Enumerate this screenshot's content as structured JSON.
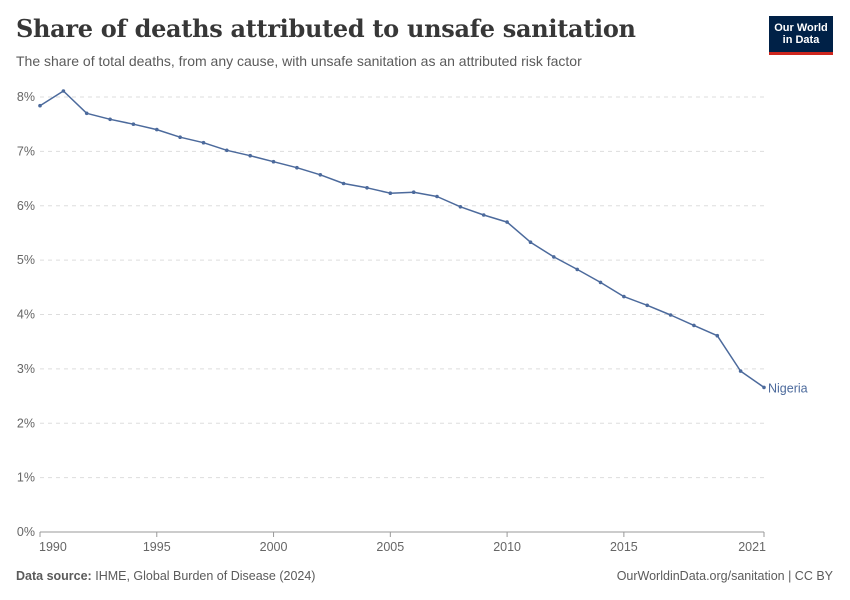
{
  "header": {
    "title": "Share of deaths attributed to unsafe sanitation",
    "subtitle": "The share of total deaths, from any cause, with unsafe sanitation as an attributed risk factor"
  },
  "logo": {
    "line1": "Our World",
    "line2": "in Data"
  },
  "footer": {
    "source_label": "Data source:",
    "source_text": "IHME, Global Burden of Disease (2024)",
    "license": "OurWorldinData.org/sanitation | CC BY"
  },
  "colors": {
    "series": "#4c6a9c",
    "grid": "#dddddd",
    "axis_text": "#666666",
    "logo_bg": "#002147",
    "logo_accent": "#ce261e"
  },
  "chart_data": {
    "type": "line",
    "title": "Share of deaths attributed to unsafe sanitation",
    "xlabel": "",
    "ylabel": "",
    "xlim": [
      1990,
      2021
    ],
    "ylim": [
      0,
      8
    ],
    "x_ticks": [
      "1990",
      "1995",
      "2000",
      "2005",
      "2010",
      "2015",
      "2021"
    ],
    "y_ticks": [
      "0%",
      "1%",
      "2%",
      "3%",
      "4%",
      "5%",
      "6%",
      "7%",
      "8%"
    ],
    "grid": "horizontal dashed",
    "series": [
      {
        "name": "Nigeria",
        "x": [
          1990,
          1991,
          1992,
          1993,
          1994,
          1995,
          1996,
          1997,
          1998,
          1999,
          2000,
          2001,
          2002,
          2003,
          2004,
          2005,
          2006,
          2007,
          2008,
          2009,
          2010,
          2011,
          2012,
          2013,
          2014,
          2015,
          2016,
          2017,
          2018,
          2019,
          2020,
          2021
        ],
        "values": [
          7.84,
          8.11,
          7.7,
          7.59,
          7.5,
          7.4,
          7.26,
          7.16,
          7.02,
          6.92,
          6.81,
          6.7,
          6.57,
          6.41,
          6.33,
          6.23,
          6.25,
          6.17,
          5.98,
          5.83,
          5.7,
          5.33,
          5.06,
          4.83,
          4.59,
          4.33,
          4.17,
          3.99,
          3.8,
          3.61,
          2.96,
          2.66
        ]
      }
    ]
  }
}
